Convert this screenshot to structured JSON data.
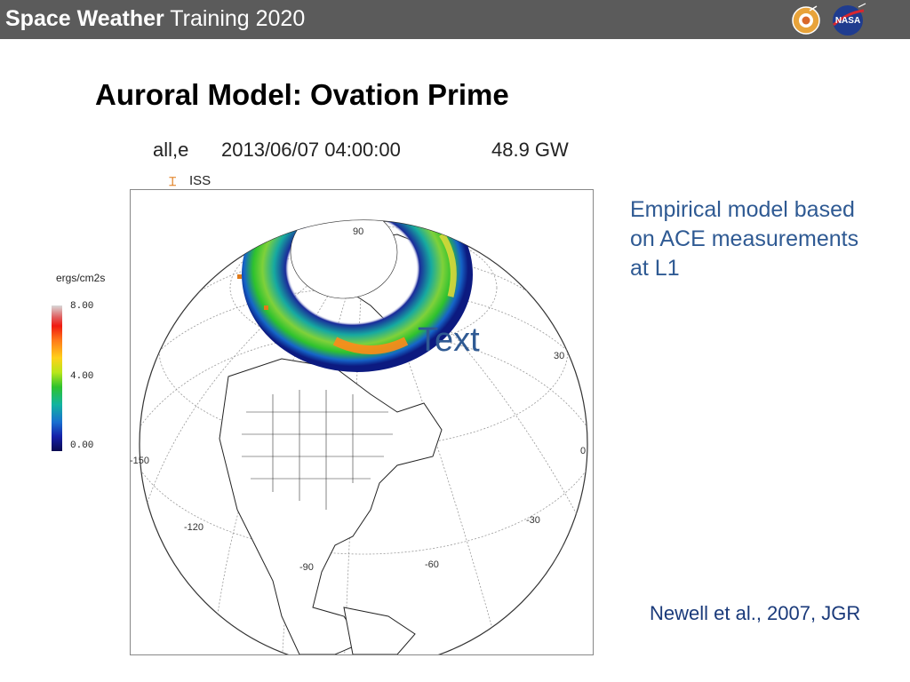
{
  "header": {
    "title_bold": "Space Weather",
    "title_rest": " Training 2020",
    "logos": [
      "ccmc-logo-icon",
      "nasa-logo-icon"
    ]
  },
  "slide": {
    "title": "Auroral Model: Ovation Prime",
    "description": "Empirical model based on ACE measurements at L1",
    "reference": "Newell et al., 2007, JGR",
    "overlay_text": "Text"
  },
  "figure": {
    "mode_label": "all,e",
    "timestamp": "2013/06/07 04:00:00",
    "power": "48.9 GW",
    "legend_label": "ISS",
    "legend_symbol": "⌶",
    "colorbar": {
      "title": "ergs/cm2s",
      "ticks": [
        "8.00",
        "4.00",
        "0.00"
      ],
      "max": 8.0,
      "min": 0.0
    },
    "graticule_labels": {
      "lat90": "90",
      "lon30": "30",
      "lon0": "0",
      "lonm30": "-30",
      "lonm60": "-60",
      "lonm90": "-90",
      "lonm120": "-120",
      "lonm150": "-150"
    },
    "colors": {
      "aurora_low": "#1a2a9a",
      "aurora_mid": "#2ec22e",
      "aurora_high": "#ff8a1a",
      "iss_marker": "#e07b1a"
    }
  }
}
